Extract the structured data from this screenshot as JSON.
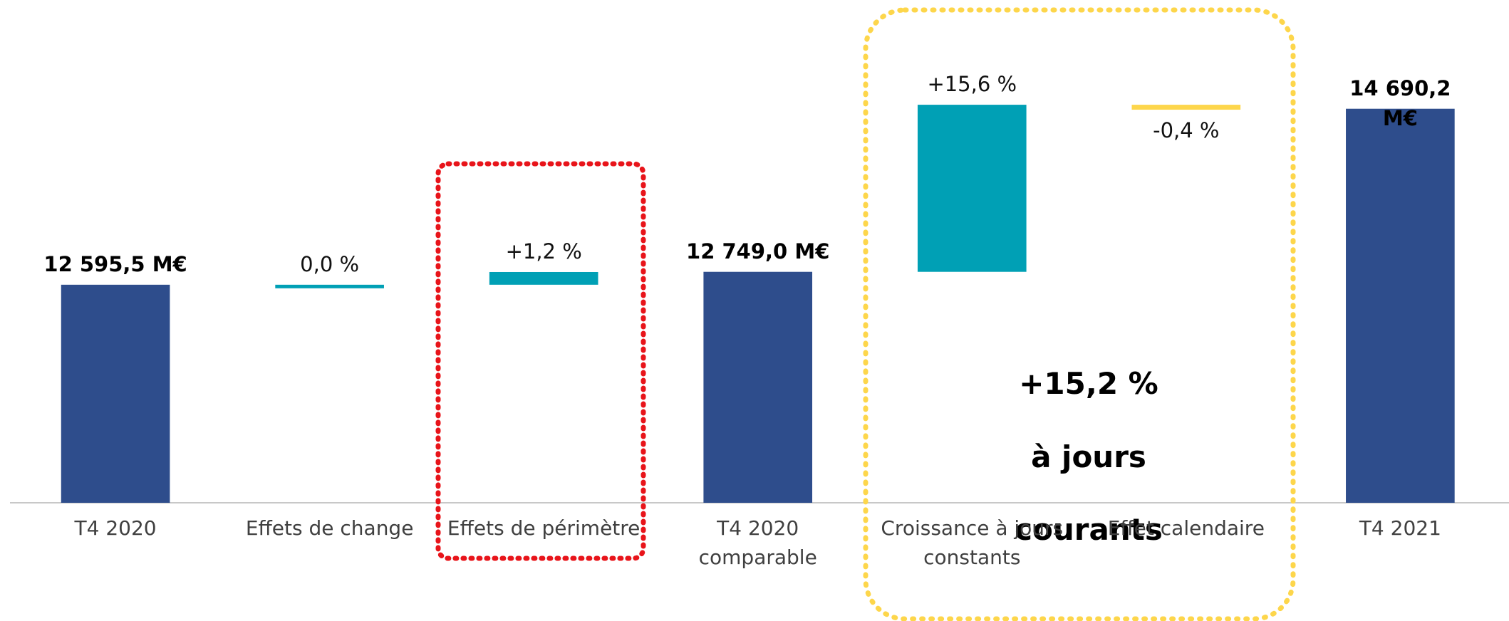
{
  "chart_data": {
    "type": "waterfall",
    "categories": [
      "T4 2020",
      "Effets de change",
      "Effets de périmètre",
      "T4 2020\ncomparable",
      "Croissance à jours\nconstants",
      "Effet calendaire",
      "T4 2021"
    ],
    "measure": [
      "absolute",
      "relative",
      "relative",
      "absolute",
      "relative",
      "relative",
      "absolute"
    ],
    "values": [
      12595.5,
      0.0,
      1.2,
      12749.0,
      15.6,
      -0.4,
      14690.2
    ],
    "value_labels": [
      "12 595,5 M€",
      "0,0 %",
      "+1,2 %",
      "12 749,0 M€",
      "+15,6 %",
      "-0,4 %",
      "14 690,2 M€"
    ],
    "colors": [
      "#2e4d8c",
      "#00a0b5",
      "#00a0b5",
      "#2e4d8c",
      "#00a0b5",
      "#fdd64b",
      "#2e4d8c"
    ],
    "ylim": [
      10000,
      15000
    ],
    "annotation": [
      "+15,2 %",
      "à  jours",
      "courants"
    ]
  }
}
